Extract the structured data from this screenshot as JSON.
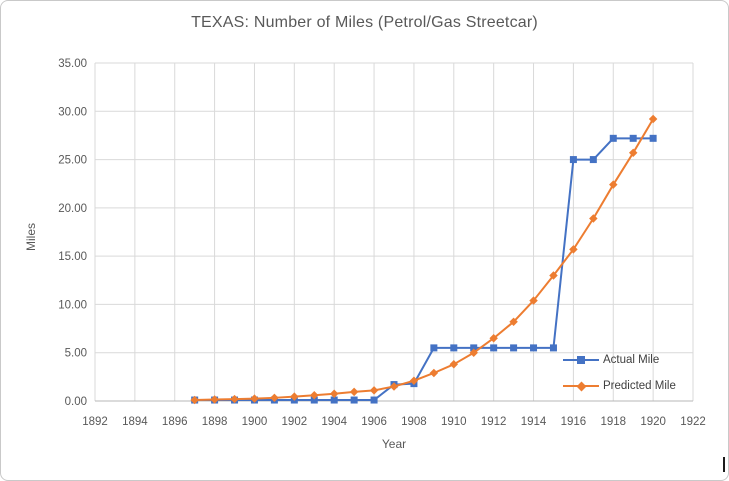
{
  "window": {
    "background": "#ffffff",
    "border_color": "#c9c9c9"
  },
  "text_colors": {
    "title": "#595959",
    "axis_labels": "#595959",
    "legend_text": "#404040"
  },
  "grid_colors": {
    "gridline": "#d9d9d9",
    "axis_line": "#b7b7b7"
  },
  "chart_data": {
    "type": "line",
    "title": "TEXAS: Number of Miles (Petrol/Gas Streetcar)",
    "xlabel": "Year",
    "ylabel": "Miles",
    "xlim": [
      1892,
      1922
    ],
    "ylim": [
      0,
      35
    ],
    "x_ticks": [
      1892,
      1894,
      1896,
      1898,
      1900,
      1902,
      1904,
      1906,
      1908,
      1910,
      1912,
      1914,
      1916,
      1918,
      1920,
      1922
    ],
    "y_ticks": [
      0,
      5,
      10,
      15,
      20,
      25,
      30,
      35
    ],
    "y_tick_labels": [
      "0.00",
      "5.00",
      "10.00",
      "15.00",
      "20.00",
      "25.00",
      "30.00",
      "35.00"
    ],
    "grid": true,
    "legend_position": "inside-bottom-right",
    "x": [
      1897,
      1898,
      1899,
      1900,
      1901,
      1902,
      1903,
      1904,
      1905,
      1906,
      1907,
      1908,
      1909,
      1910,
      1911,
      1912,
      1913,
      1914,
      1915,
      1916,
      1917,
      1918,
      1919,
      1920
    ],
    "series": [
      {
        "name": "Actual Mile",
        "color": "#4472C4",
        "marker": "square",
        "values": [
          0.1,
          0.1,
          0.1,
          0.1,
          0.1,
          0.1,
          0.1,
          0.1,
          0.1,
          0.1,
          1.7,
          1.8,
          5.5,
          5.5,
          5.5,
          5.5,
          5.5,
          5.5,
          5.5,
          25.0,
          25.0,
          27.2,
          27.2,
          27.2
        ]
      },
      {
        "name": "Predicted Mile",
        "color": "#ED7D31",
        "marker": "diamond",
        "values": [
          0.1,
          0.15,
          0.2,
          0.25,
          0.33,
          0.45,
          0.6,
          0.75,
          0.95,
          1.1,
          1.5,
          2.1,
          2.9,
          3.8,
          5.0,
          6.5,
          8.2,
          10.4,
          13.0,
          15.7,
          18.9,
          22.4,
          25.7,
          29.2
        ]
      }
    ]
  }
}
